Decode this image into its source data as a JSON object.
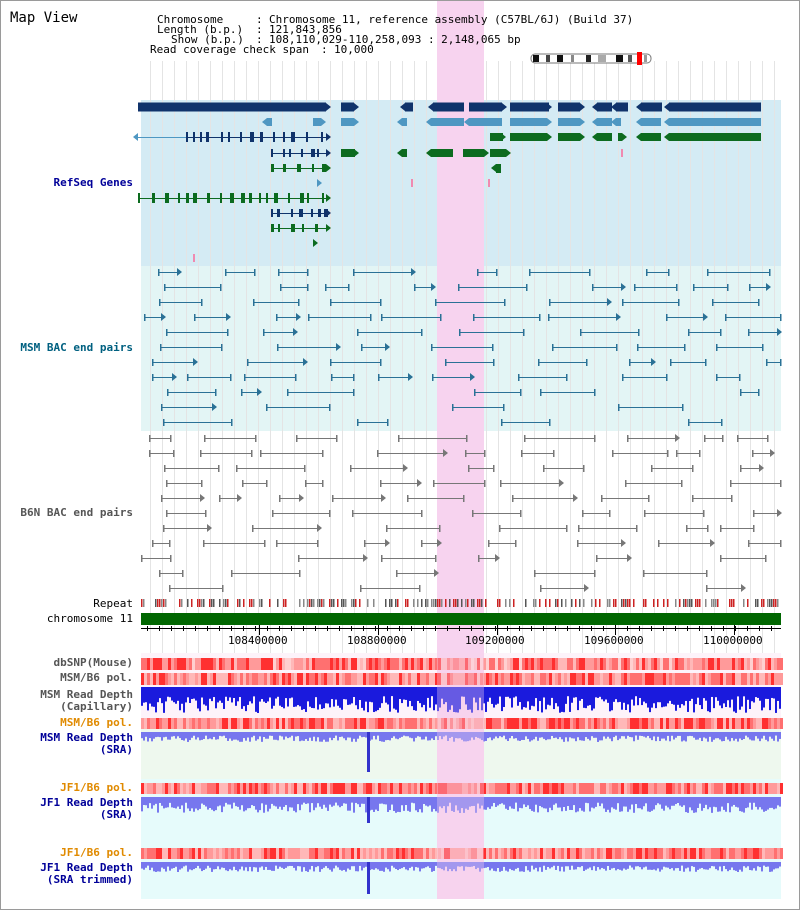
{
  "title": "Map View",
  "info": {
    "chromosome_label": "Chromosome",
    "chromosome_value": "Chromosome 11, reference assembly (C57BL/6J) (Build 37)",
    "length_label": "Length (b.p.)",
    "length_value": "121,843,856",
    "show_label": "Show (b.p.)",
    "show_value": "108,110,029-110,258,093 : 2,148,065 bp",
    "coverage_label": "Read coverage check span",
    "coverage_value": "10,000"
  },
  "tracks": {
    "refseq": "RefSeq Genes",
    "msm_bac": "MSM BAC end pairs",
    "b6n_bac": "B6N BAC end pairs",
    "repeat": "Repeat",
    "chromosome": "chromosome 11",
    "dbsnp": "dbSNP(Mouse)",
    "msm_b6_pol": "MSM/B6 pol.",
    "msm_depth_cap_1": "MSM Read Depth",
    "msm_depth_cap_2": "(Capillary)",
    "msm_b6_pol_sra": "MSM/B6 pol.",
    "msm_depth_sra_1": "MSM Read Depth",
    "msm_depth_sra_2": "(SRA)",
    "jf1_pol": "JF1/B6 pol.",
    "jf1_depth_1": "JF1 Read Depth",
    "jf1_depth_2": "(SRA)",
    "jf1_pol_trim": "JF1/B6 pol.",
    "jf1_depth_trim_1": "JF1 Read Depth",
    "jf1_depth_trim_2": "(SRA trimmed)"
  },
  "axis_ticks": [
    "108400000",
    "108800000",
    "109200000",
    "109600000",
    "110000000"
  ],
  "colors": {
    "refseq_bg": "#d4ebf4",
    "msm_bg": "#e3f5f5",
    "highlight": "#f7d3ef",
    "gene_dark": "#10336b",
    "gene_mid": "#4e97c2",
    "gene_green": "#0c6b1f",
    "chromosome_bar": "#006600",
    "label_blue": "#000099",
    "label_teal": "#006080",
    "label_orange": "#e08a00",
    "depth_capillary": "#1a1add",
    "depth_sra": "#7777ee"
  }
}
